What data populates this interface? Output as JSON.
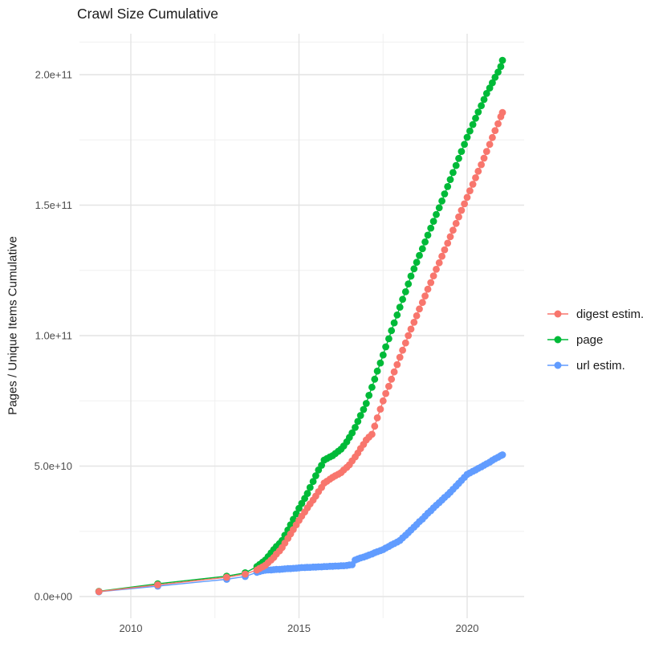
{
  "title": "Crawl Size Cumulative",
  "y_axis": {
    "label": "Pages / Unique Items Cumulative",
    "ticks": [
      "0.0e+00",
      "5.0e+10",
      "1.0e+11",
      "1.5e+11",
      "2.0e+11"
    ],
    "tick_values_billions": [
      0,
      50,
      100,
      150,
      200
    ],
    "minor_values_billions": [
      25,
      75,
      125,
      175,
      212.5
    ]
  },
  "x_axis": {
    "ticks": [
      "2010",
      "2015",
      "2020"
    ],
    "tick_values": [
      2010,
      2015,
      2020
    ],
    "minor_values": [
      2012.5,
      2017.5
    ]
  },
  "legend": {
    "items": [
      {
        "label": "digest estim.",
        "color": "#F8766D"
      },
      {
        "label": "page",
        "color": "#00BA38"
      },
      {
        "label": "url estim.",
        "color": "#619CFF"
      }
    ]
  },
  "chart_data": {
    "type": "scatter",
    "title": "Crawl Size Cumulative",
    "xlabel": "",
    "ylabel": "Pages / Unique Items Cumulative",
    "x_unit": "year (decimal)",
    "value_unit": "billions of pages / unique items (1e9)",
    "xlim": [
      2008.45,
      2021.8
    ],
    "ylim_billions": [
      -10,
      215
    ],
    "grid": true,
    "legend_position": "right",
    "series": [
      {
        "name": "url estim.",
        "color": "#619CFF",
        "points": [
          [
            2009.05,
            1.8
          ],
          [
            2010.8,
            4.0
          ],
          [
            2012.85,
            6.6
          ],
          [
            2013.4,
            7.7
          ],
          [
            2013.75,
            9.3
          ],
          [
            2013.83,
            9.6
          ],
          [
            2013.92,
            9.9
          ],
          [
            2014.0,
            10.1
          ],
          [
            2014.08,
            10.2
          ],
          [
            2014.17,
            10.2
          ],
          [
            2014.25,
            10.3
          ],
          [
            2014.33,
            10.4
          ],
          [
            2014.42,
            10.4
          ],
          [
            2014.5,
            10.5
          ],
          [
            2014.58,
            10.6
          ],
          [
            2014.67,
            10.7
          ],
          [
            2014.75,
            10.7
          ],
          [
            2014.83,
            10.8
          ],
          [
            2014.92,
            10.9
          ],
          [
            2015.0,
            11.0
          ],
          [
            2015.08,
            11.1
          ],
          [
            2015.17,
            11.1
          ],
          [
            2015.25,
            11.2
          ],
          [
            2015.33,
            11.2
          ],
          [
            2015.42,
            11.3
          ],
          [
            2015.5,
            11.3
          ],
          [
            2015.58,
            11.4
          ],
          [
            2015.67,
            11.4
          ],
          [
            2015.75,
            11.5
          ],
          [
            2015.83,
            11.5
          ],
          [
            2015.92,
            11.6
          ],
          [
            2016.0,
            11.6
          ],
          [
            2016.08,
            11.7
          ],
          [
            2016.17,
            11.7
          ],
          [
            2016.25,
            11.8
          ],
          [
            2016.33,
            11.8
          ],
          [
            2016.42,
            11.9
          ],
          [
            2016.5,
            12.1
          ],
          [
            2016.58,
            12.2
          ],
          [
            2016.67,
            14.0
          ],
          [
            2016.75,
            14.4
          ],
          [
            2016.83,
            14.8
          ],
          [
            2016.92,
            15.1
          ],
          [
            2017.0,
            15.5
          ],
          [
            2017.08,
            15.9
          ],
          [
            2017.17,
            16.3
          ],
          [
            2017.25,
            16.8
          ],
          [
            2017.33,
            17.2
          ],
          [
            2017.42,
            17.6
          ],
          [
            2017.5,
            18.0
          ],
          [
            2017.58,
            18.6
          ],
          [
            2017.67,
            19.2
          ],
          [
            2017.75,
            19.8
          ],
          [
            2017.83,
            20.3
          ],
          [
            2017.92,
            20.9
          ],
          [
            2018.0,
            21.5
          ],
          [
            2018.08,
            22.5
          ],
          [
            2018.17,
            23.5
          ],
          [
            2018.25,
            24.5
          ],
          [
            2018.33,
            25.5
          ],
          [
            2018.42,
            26.6
          ],
          [
            2018.5,
            27.6
          ],
          [
            2018.58,
            28.7
          ],
          [
            2018.67,
            29.7
          ],
          [
            2018.75,
            30.8
          ],
          [
            2018.83,
            31.9
          ],
          [
            2018.92,
            32.9
          ],
          [
            2019.0,
            34.0
          ],
          [
            2019.08,
            35.0
          ],
          [
            2019.17,
            36.0
          ],
          [
            2019.25,
            37.0
          ],
          [
            2019.33,
            38.0
          ],
          [
            2019.42,
            39.0
          ],
          [
            2019.5,
            40.0
          ],
          [
            2019.58,
            41.1
          ],
          [
            2019.67,
            42.3
          ],
          [
            2019.75,
            43.4
          ],
          [
            2019.83,
            44.5
          ],
          [
            2019.92,
            45.7
          ],
          [
            2020.0,
            46.8
          ],
          [
            2020.08,
            47.4
          ],
          [
            2020.17,
            48.0
          ],
          [
            2020.25,
            48.5
          ],
          [
            2020.33,
            49.1
          ],
          [
            2020.42,
            49.7
          ],
          [
            2020.5,
            50.3
          ],
          [
            2020.58,
            50.9
          ],
          [
            2020.67,
            51.5
          ],
          [
            2020.75,
            52.2
          ],
          [
            2020.83,
            52.8
          ],
          [
            2020.92,
            53.4
          ],
          [
            2021.0,
            54.0
          ],
          [
            2021.05,
            54.3
          ]
        ]
      },
      {
        "name": "page",
        "color": "#00BA38",
        "points": [
          [
            2009.05,
            2.0
          ],
          [
            2010.8,
            4.9
          ],
          [
            2012.85,
            7.8
          ],
          [
            2013.4,
            9.1
          ],
          [
            2013.75,
            11.5
          ],
          [
            2013.83,
            12.3
          ],
          [
            2013.92,
            13.2
          ],
          [
            2014.0,
            14.0
          ],
          [
            2014.08,
            15.3
          ],
          [
            2014.17,
            16.7
          ],
          [
            2014.25,
            18.0
          ],
          [
            2014.33,
            19.2
          ],
          [
            2014.42,
            20.3
          ],
          [
            2014.5,
            21.5
          ],
          [
            2014.58,
            23.5
          ],
          [
            2014.67,
            25.5
          ],
          [
            2014.75,
            27.5
          ],
          [
            2014.83,
            29.6
          ],
          [
            2014.92,
            31.7
          ],
          [
            2015.0,
            33.8
          ],
          [
            2015.08,
            35.7
          ],
          [
            2015.17,
            37.6
          ],
          [
            2015.25,
            39.5
          ],
          [
            2015.33,
            41.8
          ],
          [
            2015.42,
            44.1
          ],
          [
            2015.5,
            46.3
          ],
          [
            2015.58,
            48.5
          ],
          [
            2015.67,
            50.3
          ],
          [
            2015.75,
            52.3
          ],
          [
            2015.83,
            52.9
          ],
          [
            2015.92,
            53.5
          ],
          [
            2016.0,
            54.0
          ],
          [
            2016.08,
            54.8
          ],
          [
            2016.17,
            55.7
          ],
          [
            2016.25,
            56.5
          ],
          [
            2016.33,
            57.7
          ],
          [
            2016.42,
            59.3
          ],
          [
            2016.5,
            61.0
          ],
          [
            2016.58,
            62.7
          ],
          [
            2016.67,
            64.8
          ],
          [
            2016.75,
            67.1
          ],
          [
            2016.83,
            69.4
          ],
          [
            2016.92,
            71.7
          ],
          [
            2017.0,
            74.0
          ],
          [
            2017.08,
            77.1
          ],
          [
            2017.17,
            80.2
          ],
          [
            2017.25,
            83.3
          ],
          [
            2017.33,
            86.4
          ],
          [
            2017.42,
            89.5
          ],
          [
            2017.5,
            92.6
          ],
          [
            2017.58,
            95.7
          ],
          [
            2017.67,
            98.8
          ],
          [
            2017.75,
            101.9
          ],
          [
            2017.83,
            104.9
          ],
          [
            2017.92,
            107.9
          ],
          [
            2018.0,
            110.9
          ],
          [
            2018.08,
            113.9
          ],
          [
            2018.17,
            116.8
          ],
          [
            2018.25,
            119.8
          ],
          [
            2018.33,
            122.8
          ],
          [
            2018.42,
            125.6
          ],
          [
            2018.5,
            128.1
          ],
          [
            2018.58,
            130.7
          ],
          [
            2018.67,
            133.3
          ],
          [
            2018.75,
            135.9
          ],
          [
            2018.83,
            138.5
          ],
          [
            2018.92,
            141.2
          ],
          [
            2019.0,
            143.8
          ],
          [
            2019.08,
            146.4
          ],
          [
            2019.17,
            149.0
          ],
          [
            2019.25,
            151.6
          ],
          [
            2019.33,
            154.3
          ],
          [
            2019.42,
            157.1
          ],
          [
            2019.5,
            159.8
          ],
          [
            2019.58,
            162.5
          ],
          [
            2019.67,
            165.2
          ],
          [
            2019.75,
            167.9
          ],
          [
            2019.83,
            170.6
          ],
          [
            2019.92,
            173.3
          ],
          [
            2020.0,
            176.0
          ],
          [
            2020.08,
            178.4
          ],
          [
            2020.17,
            180.9
          ],
          [
            2020.25,
            183.3
          ],
          [
            2020.33,
            185.7
          ],
          [
            2020.42,
            188.1
          ],
          [
            2020.5,
            190.5
          ],
          [
            2020.58,
            192.8
          ],
          [
            2020.67,
            194.9
          ],
          [
            2020.75,
            196.9
          ],
          [
            2020.83,
            199.0
          ],
          [
            2020.92,
            201.0
          ],
          [
            2021.0,
            203.1
          ],
          [
            2021.05,
            205.5
          ]
        ]
      },
      {
        "name": "digest estim.",
        "color": "#F8766D",
        "points": [
          [
            2009.05,
            1.9
          ],
          [
            2010.8,
            4.5
          ],
          [
            2012.85,
            7.4
          ],
          [
            2013.4,
            8.6
          ],
          [
            2013.75,
            10.2
          ],
          [
            2013.83,
            10.8
          ],
          [
            2013.92,
            11.4
          ],
          [
            2014.0,
            12.0
          ],
          [
            2014.08,
            13.0
          ],
          [
            2014.17,
            14.0
          ],
          [
            2014.25,
            15.0
          ],
          [
            2014.33,
            16.3
          ],
          [
            2014.42,
            17.5
          ],
          [
            2014.5,
            18.8
          ],
          [
            2014.58,
            20.5
          ],
          [
            2014.67,
            22.3
          ],
          [
            2014.75,
            24.0
          ],
          [
            2014.83,
            25.7
          ],
          [
            2014.92,
            27.5
          ],
          [
            2015.0,
            29.2
          ],
          [
            2015.08,
            30.8
          ],
          [
            2015.17,
            32.4
          ],
          [
            2015.25,
            34.0
          ],
          [
            2015.33,
            35.5
          ],
          [
            2015.42,
            37.0
          ],
          [
            2015.5,
            38.5
          ],
          [
            2015.58,
            40.2
          ],
          [
            2015.67,
            41.8
          ],
          [
            2015.75,
            43.5
          ],
          [
            2015.83,
            44.2
          ],
          [
            2015.92,
            45.0
          ],
          [
            2016.0,
            45.7
          ],
          [
            2016.08,
            46.3
          ],
          [
            2016.17,
            46.9
          ],
          [
            2016.25,
            47.5
          ],
          [
            2016.33,
            48.5
          ],
          [
            2016.42,
            49.5
          ],
          [
            2016.5,
            50.5
          ],
          [
            2016.58,
            52.0
          ],
          [
            2016.67,
            53.5
          ],
          [
            2016.75,
            55.0
          ],
          [
            2016.83,
            56.7
          ],
          [
            2016.92,
            58.3
          ],
          [
            2017.0,
            60.0
          ],
          [
            2017.08,
            61.1
          ],
          [
            2017.17,
            62.2
          ],
          [
            2017.25,
            65.3
          ],
          [
            2017.33,
            68.5
          ],
          [
            2017.42,
            71.8
          ],
          [
            2017.5,
            75.0
          ],
          [
            2017.58,
            77.8
          ],
          [
            2017.67,
            80.6
          ],
          [
            2017.75,
            83.3
          ],
          [
            2017.83,
            86.1
          ],
          [
            2017.92,
            88.9
          ],
          [
            2018.0,
            91.7
          ],
          [
            2018.08,
            94.4
          ],
          [
            2018.17,
            97.2
          ],
          [
            2018.25,
            100.0
          ],
          [
            2018.33,
            102.5
          ],
          [
            2018.42,
            105.1
          ],
          [
            2018.5,
            107.6
          ],
          [
            2018.58,
            110.2
          ],
          [
            2018.67,
            112.7
          ],
          [
            2018.75,
            115.2
          ],
          [
            2018.83,
            117.8
          ],
          [
            2018.92,
            120.3
          ],
          [
            2019.0,
            122.9
          ],
          [
            2019.08,
            125.4
          ],
          [
            2019.17,
            127.9
          ],
          [
            2019.25,
            130.4
          ],
          [
            2019.33,
            132.9
          ],
          [
            2019.42,
            135.4
          ],
          [
            2019.5,
            137.9
          ],
          [
            2019.58,
            140.4
          ],
          [
            2019.67,
            143.0
          ],
          [
            2019.75,
            145.5
          ],
          [
            2019.83,
            148.0
          ],
          [
            2019.92,
            150.5
          ],
          [
            2020.0,
            153.0
          ],
          [
            2020.08,
            155.5
          ],
          [
            2020.17,
            158.0
          ],
          [
            2020.25,
            160.5
          ],
          [
            2020.33,
            163.0
          ],
          [
            2020.42,
            165.5
          ],
          [
            2020.5,
            168.0
          ],
          [
            2020.58,
            170.6
          ],
          [
            2020.67,
            173.3
          ],
          [
            2020.75,
            175.9
          ],
          [
            2020.83,
            178.6
          ],
          [
            2020.92,
            181.2
          ],
          [
            2021.0,
            183.9
          ],
          [
            2021.05,
            185.5
          ]
        ]
      }
    ]
  }
}
